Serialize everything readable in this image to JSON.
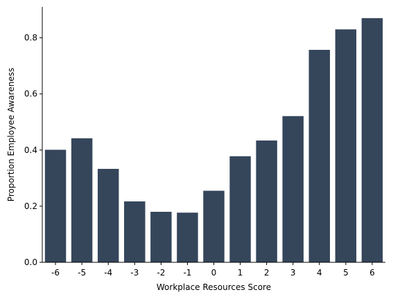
{
  "chart_data": {
    "type": "bar",
    "title": "",
    "xlabel": "Workplace Resources Score",
    "ylabel": "Proportion Employee Awareness",
    "categories": [
      "-6",
      "-5",
      "-4",
      "-3",
      "-2",
      "-1",
      "0",
      "1",
      "2",
      "3",
      "4",
      "5",
      "6"
    ],
    "values": [
      0.401,
      0.442,
      0.333,
      0.217,
      0.18,
      0.177,
      0.255,
      0.378,
      0.434,
      0.521,
      0.757,
      0.83,
      0.87
    ],
    "ylim": [
      0,
      0.91
    ],
    "yticks": [
      0.0,
      0.2,
      0.4,
      0.6,
      0.8
    ],
    "ytick_labels": [
      "0.0",
      "0.2",
      "0.4",
      "0.6",
      "0.8"
    ],
    "bar_color": "#35465b",
    "grid": false,
    "legend": "none"
  }
}
